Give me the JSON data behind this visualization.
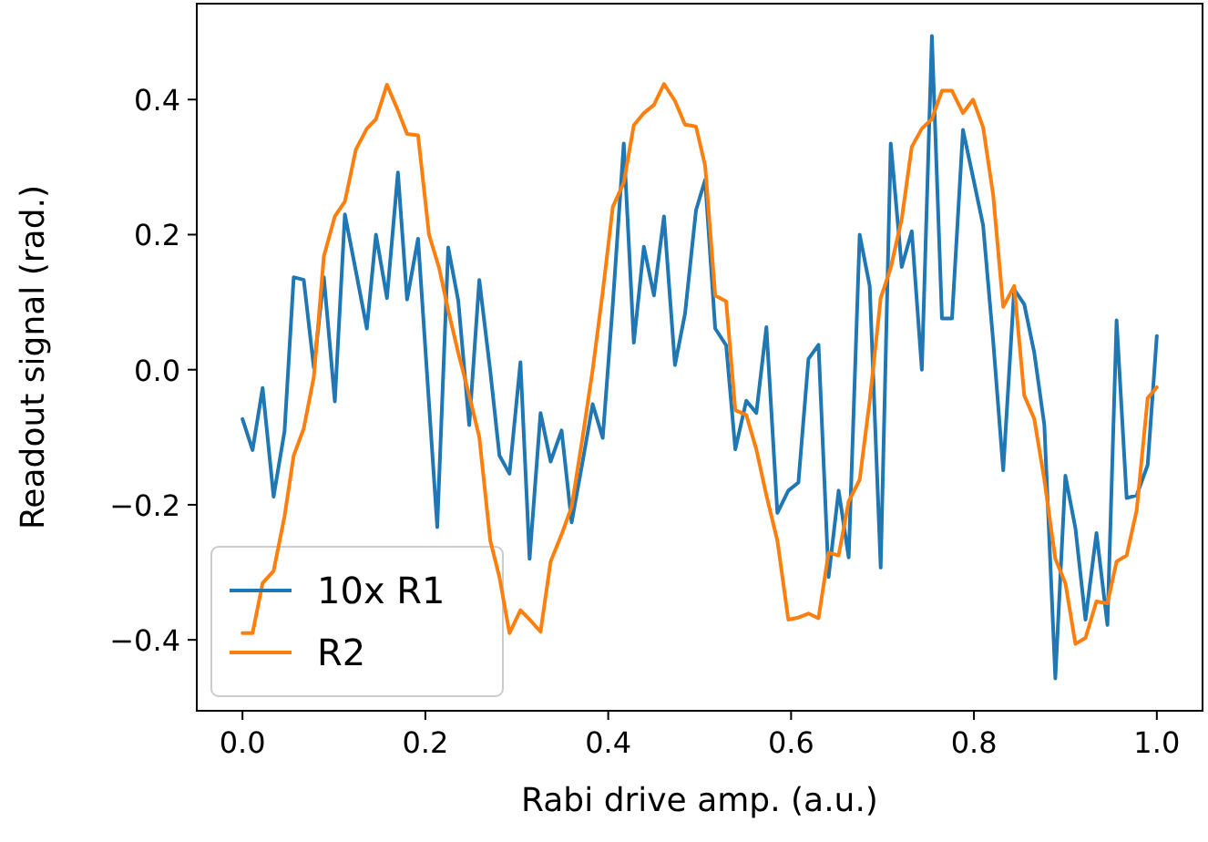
{
  "chart_data": {
    "type": "line",
    "xlabel": "Rabi drive amp. (a.u.)",
    "ylabel": "Readout signal (rad.)",
    "xlim": [
      -0.05,
      1.05
    ],
    "ylim": [
      -0.505,
      0.542
    ],
    "xticks": [
      {
        "value": 0,
        "label": "0.0"
      },
      {
        "value": 0.2,
        "label": "0.2"
      },
      {
        "value": 0.4,
        "label": "0.4"
      },
      {
        "value": 0.6,
        "label": "0.6"
      },
      {
        "value": 0.8,
        "label": "0.8"
      },
      {
        "value": 1,
        "label": "1.0"
      }
    ],
    "yticks": [
      {
        "value": -0.4,
        "label": "−0.4"
      },
      {
        "value": -0.2,
        "label": "−0.2"
      },
      {
        "value": 0,
        "label": "0.0"
      },
      {
        "value": 0.2,
        "label": "0.2"
      },
      {
        "value": 0.4,
        "label": "0.4"
      }
    ],
    "legend": "bottom left",
    "grid": false,
    "marker": "none",
    "line_style": "solid",
    "series": [
      {
        "name": "10x R1",
        "color": "#1f77b4",
        "x": [
          0.0,
          0.011,
          0.022,
          0.034,
          0.046,
          0.056,
          0.067,
          0.078,
          0.089,
          0.101,
          0.112,
          0.124,
          0.136,
          0.146,
          0.158,
          0.17,
          0.18,
          0.192,
          0.213,
          0.225,
          0.236,
          0.248,
          0.259,
          0.271,
          0.281,
          0.292,
          0.304,
          0.314,
          0.326,
          0.337,
          0.349,
          0.36,
          0.372,
          0.383,
          0.394,
          0.405,
          0.417,
          0.428,
          0.439,
          0.45,
          0.461,
          0.473,
          0.484,
          0.496,
          0.506,
          0.517,
          0.529,
          0.539,
          0.551,
          0.562,
          0.573,
          0.585,
          0.597,
          0.608,
          0.619,
          0.63,
          0.641,
          0.652,
          0.663,
          0.675,
          0.686,
          0.698,
          0.709,
          0.721,
          0.732,
          0.743,
          0.754,
          0.765,
          0.776,
          0.788,
          0.799,
          0.81,
          0.821,
          0.832,
          0.844,
          0.855,
          0.866,
          0.877,
          0.889,
          0.9,
          0.911,
          0.922,
          0.934,
          0.946,
          0.956,
          0.967,
          0.978,
          0.99,
          1.0
        ],
        "values": [
          -0.073,
          -0.119,
          -0.027,
          -0.188,
          -0.091,
          0.137,
          0.133,
          0.003,
          0.137,
          -0.047,
          0.23,
          0.146,
          0.061,
          0.2,
          0.106,
          0.292,
          0.104,
          0.194,
          -0.233,
          0.181,
          0.102,
          -0.082,
          0.133,
          -0.002,
          -0.127,
          -0.154,
          0.011,
          -0.28,
          -0.064,
          -0.136,
          -0.09,
          -0.226,
          -0.136,
          -0.051,
          -0.101,
          0.097,
          0.335,
          0.04,
          0.182,
          0.11,
          0.227,
          0.007,
          0.083,
          0.236,
          0.281,
          0.061,
          0.036,
          -0.118,
          -0.046,
          -0.064,
          0.063,
          -0.212,
          -0.179,
          -0.167,
          0.016,
          0.037,
          -0.307,
          -0.179,
          -0.278,
          0.2,
          0.124,
          -0.293,
          0.335,
          0.152,
          0.205,
          0.0,
          0.494,
          0.076,
          0.076,
          0.355,
          0.285,
          0.214,
          0.043,
          -0.149,
          0.119,
          0.097,
          0.025,
          -0.082,
          -0.457,
          -0.157,
          -0.235,
          -0.37,
          -0.242,
          -0.378,
          0.073,
          -0.19,
          -0.186,
          -0.141,
          0.05
        ]
      },
      {
        "name": "R2",
        "color": "#ff7f0e",
        "x": [
          0.0,
          0.011,
          0.022,
          0.034,
          0.046,
          0.056,
          0.067,
          0.078,
          0.089,
          0.101,
          0.112,
          0.124,
          0.136,
          0.146,
          0.158,
          0.17,
          0.18,
          0.192,
          0.204,
          0.215,
          0.225,
          0.236,
          0.248,
          0.259,
          0.271,
          0.281,
          0.292,
          0.304,
          0.314,
          0.326,
          0.337,
          0.349,
          0.36,
          0.372,
          0.383,
          0.394,
          0.405,
          0.417,
          0.428,
          0.439,
          0.45,
          0.461,
          0.473,
          0.484,
          0.496,
          0.506,
          0.517,
          0.529,
          0.539,
          0.551,
          0.562,
          0.573,
          0.585,
          0.597,
          0.608,
          0.619,
          0.63,
          0.641,
          0.652,
          0.663,
          0.675,
          0.686,
          0.698,
          0.709,
          0.721,
          0.732,
          0.743,
          0.754,
          0.765,
          0.776,
          0.788,
          0.799,
          0.81,
          0.821,
          0.832,
          0.844,
          0.855,
          0.866,
          0.877,
          0.889,
          0.9,
          0.911,
          0.922,
          0.934,
          0.946,
          0.956,
          0.967,
          0.978,
          0.99,
          1.0
        ],
        "values": [
          -0.39,
          -0.39,
          -0.316,
          -0.298,
          -0.217,
          -0.127,
          -0.087,
          -0.011,
          0.168,
          0.227,
          0.249,
          0.326,
          0.357,
          0.371,
          0.422,
          0.384,
          0.349,
          0.347,
          0.2,
          0.151,
          0.088,
          0.025,
          -0.038,
          -0.1,
          -0.253,
          -0.307,
          -0.39,
          -0.356,
          -0.37,
          -0.388,
          -0.284,
          -0.244,
          -0.203,
          -0.1,
          0.0,
          0.115,
          0.241,
          0.277,
          0.362,
          0.38,
          0.392,
          0.423,
          0.398,
          0.363,
          0.36,
          0.302,
          0.11,
          0.101,
          -0.06,
          -0.067,
          -0.118,
          -0.186,
          -0.253,
          -0.37,
          -0.367,
          -0.361,
          -0.368,
          -0.271,
          -0.275,
          -0.195,
          -0.163,
          -0.046,
          0.106,
          0.151,
          0.223,
          0.33,
          0.357,
          0.371,
          0.413,
          0.413,
          0.38,
          0.4,
          0.359,
          0.259,
          0.093,
          0.124,
          -0.038,
          -0.073,
          -0.163,
          -0.28,
          -0.316,
          -0.406,
          -0.397,
          -0.343,
          -0.346,
          -0.284,
          -0.275,
          -0.208,
          -0.042,
          -0.026
        ]
      }
    ]
  }
}
